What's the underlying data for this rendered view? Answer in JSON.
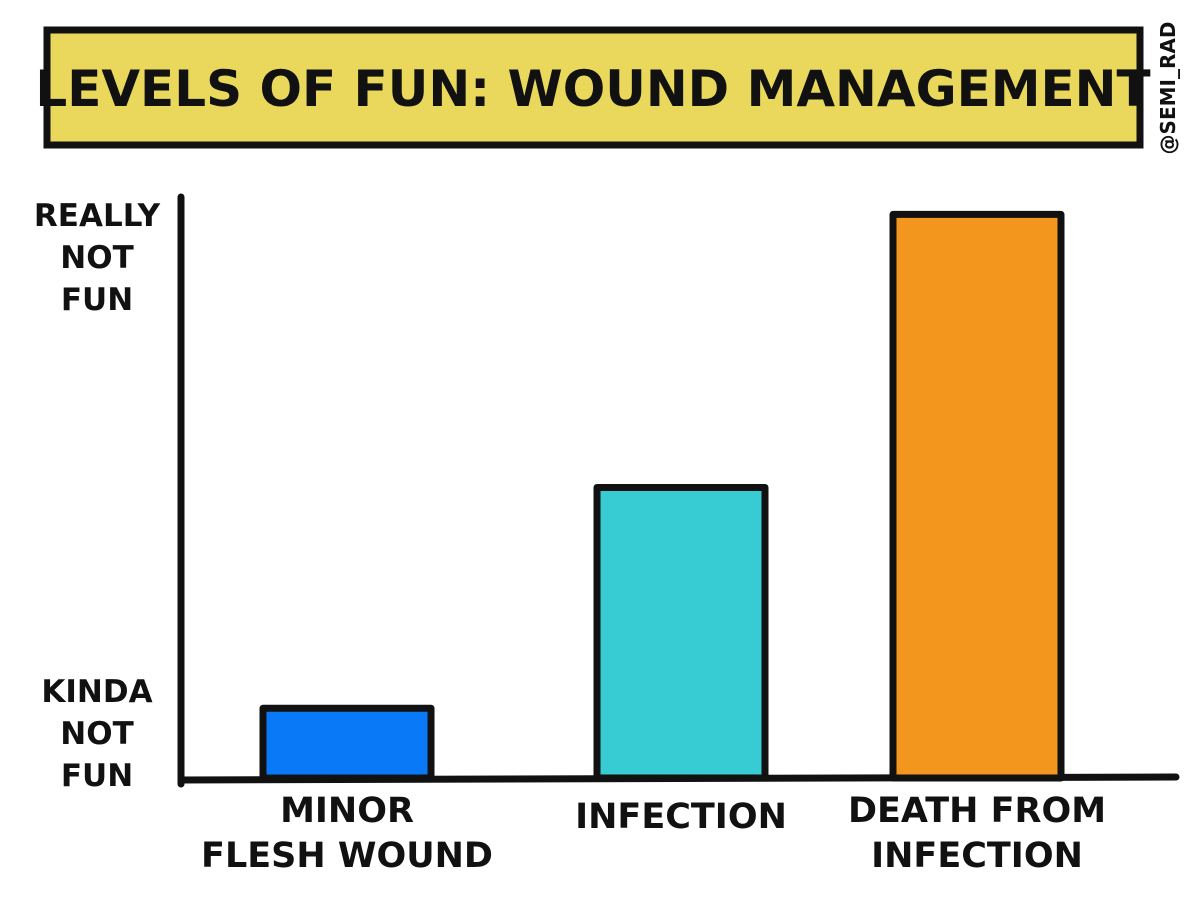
{
  "colors": {
    "title_bg": "#E9D85C",
    "ink": "#111111",
    "background": "#ffffff"
  },
  "watermark": "@SEMI_RAD",
  "chart_data": {
    "type": "bar",
    "title": "LEVELS OF FUN: WOUND MANAGEMENT",
    "y_tick_labels": [
      {
        "lines": [
          "KINDA",
          "NOT",
          "FUN"
        ],
        "value": 0
      },
      {
        "lines": [
          "REALLY",
          "NOT",
          "FUN"
        ],
        "value": 100
      }
    ],
    "ylim": [
      0,
      100
    ],
    "grid": false,
    "categories": [
      {
        "lines": [
          "MINOR",
          "FLESH WOUND"
        ]
      },
      {
        "lines": [
          "INFECTION"
        ]
      },
      {
        "lines": [
          "DEATH FROM",
          "INFECTION"
        ]
      }
    ],
    "values": [
      12,
      50,
      97
    ],
    "bar_colors": [
      "#0A79F8",
      "#37CBD3",
      "#F2961E"
    ]
  }
}
